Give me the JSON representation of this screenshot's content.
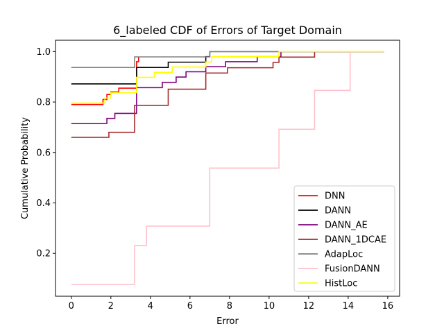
{
  "chart_data": {
    "type": "line",
    "title": "6_labeled CDF of Errors of Target Domain",
    "xlabel": "Error",
    "ylabel": "Cumulative Probability",
    "xlim": [
      -0.8,
      16.6
    ],
    "ylim": [
      0.03,
      1.045
    ],
    "x_ticks": [
      0,
      2,
      4,
      6,
      8,
      10,
      12,
      14,
      16
    ],
    "y_ticks": [
      0.2,
      0.4,
      0.6,
      0.8,
      1.0
    ],
    "x_tick_labels": [
      "0",
      "2",
      "4",
      "6",
      "8",
      "10",
      "12",
      "14",
      "16"
    ],
    "y_tick_labels": [
      "0.2",
      "0.4",
      "0.6",
      "0.8",
      "1.0"
    ],
    "grid": false,
    "legend_position": "lower-right",
    "series": [
      {
        "name": "DNN",
        "color": "#ff0000",
        "x": [
          0,
          1.6,
          1.6,
          1.8,
          1.8,
          2.0,
          2.0,
          2.4,
          2.4,
          3.3,
          3.3,
          3.4,
          3.4
        ],
        "y": [
          0.79,
          0.79,
          0.81,
          0.81,
          0.83,
          0.83,
          0.84,
          0.84,
          0.855,
          0.855,
          0.96,
          0.96,
          0.98
        ]
      },
      {
        "name": "DANN",
        "color": "#000000",
        "x": [
          0,
          3.3,
          3.3,
          4.9,
          4.9,
          6.8,
          6.8,
          7.0,
          7.0,
          15.8
        ],
        "y": [
          0.872,
          0.872,
          0.937,
          0.937,
          0.958,
          0.958,
          0.98,
          0.98,
          1.0,
          1.0
        ]
      },
      {
        "name": "DANN_AE",
        "color": "#800080",
        "x": [
          0,
          1.8,
          1.8,
          2.2,
          2.2,
          2.6,
          2.6,
          3.3,
          3.3,
          4.6,
          4.6,
          5.3,
          5.3,
          5.8,
          5.8,
          6.1,
          6.1,
          6.8,
          6.8,
          7.0,
          7.0,
          7.8,
          7.8,
          9.4,
          9.4,
          10.3,
          10.3,
          10.6,
          10.6,
          15.8
        ],
        "y": [
          0.715,
          0.715,
          0.735,
          0.735,
          0.755,
          0.755,
          0.755,
          0.755,
          0.857,
          0.857,
          0.878,
          0.878,
          0.899,
          0.899,
          0.92,
          0.92,
          0.92,
          0.92,
          0.94,
          0.94,
          0.94,
          0.94,
          0.96,
          0.96,
          0.98,
          0.98,
          0.98,
          0.98,
          1.0,
          1.0
        ]
      },
      {
        "name": "DANN_1DCAE",
        "color": "#a52a2a",
        "x": [
          0,
          1.9,
          1.9,
          3.2,
          3.2,
          4.9,
          4.9,
          6.8,
          6.8,
          7.9,
          7.9,
          10.2,
          10.2,
          10.5,
          10.5,
          12.3,
          12.3,
          15.8
        ],
        "y": [
          0.66,
          0.66,
          0.68,
          0.68,
          0.787,
          0.787,
          0.851,
          0.851,
          0.915,
          0.915,
          0.936,
          0.936,
          0.957,
          0.957,
          0.978,
          0.978,
          1.0,
          1.0
        ]
      },
      {
        "name": "AdapLoc",
        "color": "#808080",
        "x": [
          0,
          3.2,
          3.2,
          6.8,
          6.8,
          7.0,
          7.0,
          15.8
        ],
        "y": [
          0.937,
          0.937,
          0.979,
          0.979,
          0.979,
          0.979,
          1.0,
          1.0
        ]
      },
      {
        "name": "FusionDANN",
        "color": "#ffc0cb",
        "x": [
          0,
          3.2,
          3.2,
          3.8,
          3.8,
          7.0,
          7.0,
          10.5,
          10.5,
          12.3,
          12.3,
          14.1,
          14.1,
          15.8
        ],
        "y": [
          0.077,
          0.077,
          0.231,
          0.231,
          0.308,
          0.308,
          0.538,
          0.538,
          0.692,
          0.692,
          0.846,
          0.846,
          1.0,
          1.0
        ]
      },
      {
        "name": "HistLoc",
        "color": "#ffff00",
        "x": [
          0,
          1.7,
          1.7,
          2.0,
          2.0,
          3.3,
          3.3,
          4.2,
          4.2,
          5.1,
          5.1,
          6.8,
          6.8,
          7.1,
          7.1,
          9.8,
          9.8,
          10.5,
          10.5,
          15.8
        ],
        "y": [
          0.796,
          0.796,
          0.816,
          0.816,
          0.837,
          0.837,
          0.898,
          0.898,
          0.918,
          0.918,
          0.939,
          0.939,
          0.959,
          0.959,
          0.98,
          0.98,
          0.98,
          0.98,
          1.0,
          1.0
        ]
      }
    ]
  }
}
